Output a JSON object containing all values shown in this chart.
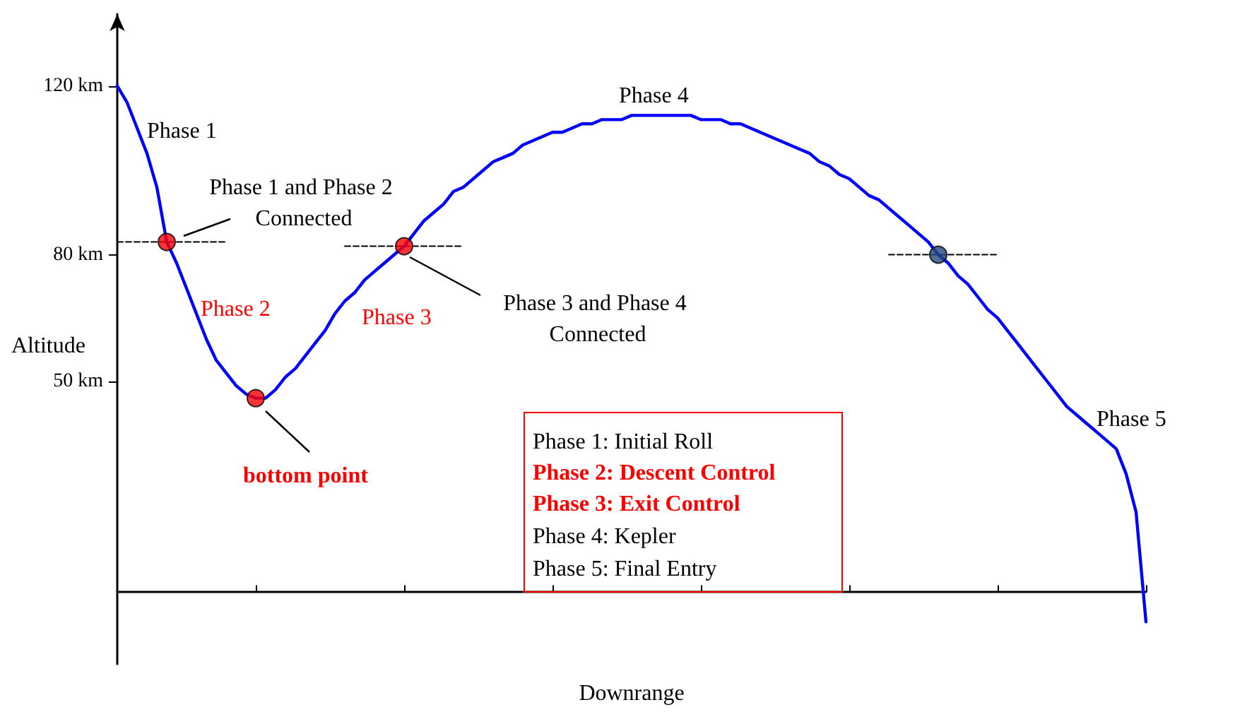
{
  "chart_data": {
    "type": "line",
    "xlabel": "Downrange",
    "ylabel": "Altitude",
    "ylim": [
      -17,
      137
    ],
    "yticks": [
      {
        "value": 50,
        "label": "50 km"
      },
      {
        "value": 80,
        "label": "80 km"
      },
      {
        "value": 120,
        "label": "120 km"
      }
    ],
    "grid": false,
    "marker": "none",
    "categories": [
      null,
      null,
      null,
      null,
      null,
      null,
      null,
      null,
      null,
      null,
      null,
      null,
      null,
      null,
      null,
      null,
      null,
      null,
      null,
      null,
      null,
      null,
      null,
      null,
      null,
      null,
      null,
      null,
      null,
      null,
      null,
      null,
      null,
      null,
      null,
      null,
      null,
      null,
      null,
      null,
      null,
      null,
      null,
      null,
      null,
      null,
      null,
      null,
      null,
      null,
      null,
      null,
      null,
      null,
      null,
      null,
      null,
      null,
      null,
      null,
      null,
      null,
      null,
      null,
      null,
      null,
      null,
      null,
      null,
      null,
      null,
      null,
      null,
      null,
      null,
      null,
      null,
      null,
      null,
      null,
      null,
      null,
      null,
      null,
      null,
      null,
      null,
      null,
      null,
      null,
      null,
      null,
      null,
      null,
      null,
      null,
      null,
      null,
      null,
      null,
      null,
      null,
      null,
      null,
      null
    ],
    "series": [
      {
        "line_style": "dashed",
        "color": "#000000",
        "values": [
          83,
          83,
          83,
          83,
          83,
          83,
          83,
          83,
          83,
          83,
          83,
          83,
          null,
          null,
          null,
          null,
          null,
          null,
          null,
          null,
          null,
          null,
          null,
          82,
          82,
          82,
          82,
          82,
          82,
          82,
          82,
          82,
          82,
          82,
          82,
          82,
          null,
          null,
          null,
          null,
          null,
          null,
          null,
          null,
          null,
          null,
          null,
          null,
          null,
          null,
          null,
          null,
          null,
          null,
          null,
          null,
          null,
          null,
          null,
          null,
          null,
          null,
          null,
          null,
          null,
          null,
          null,
          null,
          null,
          null,
          null,
          null,
          null,
          null,
          null,
          null,
          null,
          null,
          80,
          80,
          80,
          80,
          80,
          80,
          80,
          80,
          80,
          80,
          80,
          80,
          null,
          null,
          null,
          null,
          null,
          null,
          null,
          null,
          null,
          null,
          null,
          null,
          null,
          null,
          null
        ]
      },
      {
        "line_style": "solid",
        "color": "#0000ff",
        "values": [
          120,
          116,
          110,
          104,
          96,
          83,
          78,
          72,
          66,
          60,
          55,
          52,
          49,
          47,
          46,
          46,
          48,
          51,
          53,
          56,
          59,
          62,
          66,
          69,
          71,
          74,
          76,
          78,
          80,
          82,
          85,
          88,
          90,
          92,
          95,
          96,
          98,
          100,
          102,
          103,
          104,
          106,
          107,
          108,
          109,
          109,
          110,
          111,
          111,
          112,
          112,
          112,
          113,
          113,
          113,
          113,
          113,
          113,
          113,
          112,
          112,
          112,
          111,
          111,
          110,
          109,
          108,
          107,
          106,
          105,
          104,
          102,
          101,
          99,
          98,
          96,
          94,
          93,
          91,
          89,
          87,
          85,
          83,
          80,
          78,
          75,
          73,
          70,
          67,
          65,
          62,
          59,
          56,
          53,
          50,
          47,
          44,
          42,
          40,
          38,
          36,
          34,
          28,
          19,
          -7
        ]
      },
      {
        "type": "scatter",
        "marker": "circle",
        "colors": [
          null,
          null,
          null,
          null,
          null,
          "#ff0000",
          null,
          null,
          null,
          null,
          null,
          null,
          null,
          null,
          "#ff0000",
          null,
          null,
          null,
          null,
          null,
          null,
          null,
          null,
          null,
          null,
          null,
          null,
          null,
          null,
          "#ff0000",
          null,
          null,
          null,
          null,
          null,
          null,
          null,
          null,
          null,
          null,
          null,
          null,
          null,
          null,
          null,
          null,
          null,
          null,
          null,
          null,
          null,
          null,
          null,
          null,
          null,
          null,
          null,
          null,
          null,
          null,
          null,
          null,
          null,
          null,
          null,
          null,
          null,
          null,
          null,
          null,
          null,
          null,
          null,
          null,
          null,
          null,
          null,
          null,
          null,
          null,
          null,
          null,
          null,
          "#24487a",
          null,
          null,
          null,
          null,
          null,
          null,
          null,
          null,
          null,
          null,
          null,
          null,
          null,
          null,
          null,
          null,
          null,
          null,
          null,
          null,
          null
        ],
        "values": [
          null,
          null,
          null,
          null,
          null,
          83,
          null,
          null,
          null,
          null,
          null,
          null,
          null,
          null,
          46,
          null,
          null,
          null,
          null,
          null,
          null,
          null,
          null,
          null,
          null,
          null,
          null,
          null,
          null,
          82,
          null,
          null,
          null,
          null,
          null,
          null,
          null,
          null,
          null,
          null,
          null,
          null,
          null,
          null,
          null,
          null,
          null,
          null,
          null,
          null,
          null,
          null,
          null,
          null,
          null,
          null,
          null,
          null,
          null,
          null,
          null,
          null,
          null,
          null,
          null,
          null,
          null,
          null,
          null,
          null,
          null,
          null,
          null,
          null,
          null,
          null,
          null,
          null,
          null,
          null,
          null,
          null,
          null,
          80,
          null,
          null,
          null,
          null,
          null,
          null,
          null,
          null,
          null,
          null,
          null,
          null,
          null,
          null,
          null,
          null,
          null,
          null,
          null,
          null,
          null
        ]
      }
    ],
    "annotations": [
      "Phase 1",
      "Phase 1 and Phase 2 Connected",
      "Phase 2",
      "Phase 3",
      "Phase 3 and Phase 4 Connected",
      "bottom point",
      "Phase 4",
      "Phase 5",
      "Phase 1: Initial Roll",
      "Phase 2: Descent Control",
      "Phase 3: Exit Control",
      "Phase 4: Kepler",
      "Phase 5: Final Entry"
    ]
  }
}
